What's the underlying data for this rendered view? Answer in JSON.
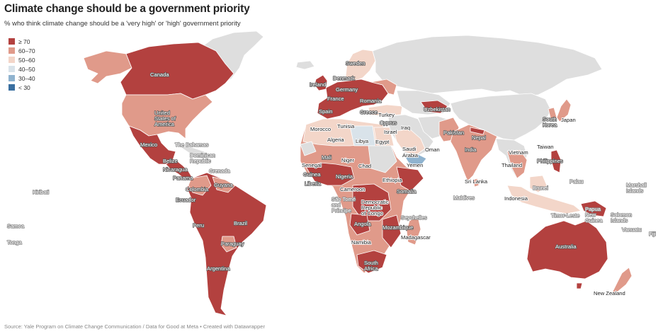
{
  "header": {
    "title": "Climate change should be a government priority",
    "subtitle": "% who think climate change should be a 'very high' or 'high' government priority"
  },
  "legend": [
    {
      "label": "≥ 70",
      "color": "#b3413f"
    },
    {
      "label": "60–70",
      "color": "#e09a8a"
    },
    {
      "label": "50–60",
      "color": "#f3d6c9"
    },
    {
      "label": "40–50",
      "color": "#d9e3ea"
    },
    {
      "label": "30–40",
      "color": "#8fb3cf"
    },
    {
      "label": "< 30",
      "color": "#3a6fa0"
    }
  ],
  "no_data_color": "#dedede",
  "labels": {
    "canada": "Canada",
    "usa": "United States of America",
    "mexico": "Mexico",
    "bahamas": "The Bahamas",
    "domrep": "Dominican Republic",
    "belize": "Belize",
    "nicaragua": "Nicaragua",
    "grenada": "Grenada",
    "panama": "Panama",
    "guyana": "Guyana",
    "colombia": "Colombia",
    "ecuador": "Ecuador",
    "peru": "Peru",
    "brazil": "Brazil",
    "paraguay": "Paraguay",
    "argentina": "Argentina",
    "kiribati": "Kiribati",
    "samoa": "Samoa",
    "tonga": "Tonga",
    "sweden": "Sweden",
    "denmark": "Denmark",
    "ireland": "Ireland",
    "germany": "Germany",
    "france": "France",
    "romania": "Romania",
    "spain": "Spain",
    "greece": "Greece",
    "turkey": "Turkey",
    "cyprus": "Cyprus",
    "uzbekistan": "Uzbekistan",
    "morocco": "Morocco",
    "tunisia": "Tunisia",
    "algeria": "Algeria",
    "libya": "Libya",
    "egypt": "Egypt",
    "israel": "Israel",
    "iraq": "Iraq",
    "saudi": "Saudi Arabia",
    "oman": "Oman",
    "yemen": "Yemen",
    "pakistan": "Pakistan",
    "nepal": "Nepal",
    "india": "India",
    "srilanka": "Sri Lanka",
    "maldives": "Maldives",
    "senegal": "Senegal",
    "mali": "Mali",
    "niger": "Niger",
    "chad": "Chad",
    "guinea": "Guinea",
    "liberia": "Liberia",
    "nigeria": "Nigeria",
    "cameroon": "Cameroon",
    "ethiopia": "Ethiopia",
    "somalia": "Somalia",
    "saotome": "São Tomé and Príncipe",
    "drc": "Democratic Republic of Congo",
    "seychelles": "Seychelles",
    "angola": "Angola",
    "mozambique": "Mozambique",
    "madagascar": "Madagascar",
    "namibia": "Namibia",
    "southafrica": "South Africa",
    "skorea": "South Korea",
    "japan": "Japan",
    "taiwan": "Taiwan",
    "vietnam": "Vietnam",
    "thailand": "Thailand",
    "philippines": "Philippines",
    "palau": "Palau",
    "brunei": "Brunei",
    "indonesia": "Indonesia",
    "timorleste": "Timor-Leste",
    "png": "Papua New Guinea",
    "solomon": "Solomon Islands",
    "marshall": "Marshall Islands",
    "vanuatu": "Vanuatu",
    "fiji": "Fiji",
    "australia": "Australia",
    "newzealand": "New Zealand"
  },
  "source": "Source: Yale Program on Climate Change Communication / Data for Good at Meta • Created with Datawrapper"
}
